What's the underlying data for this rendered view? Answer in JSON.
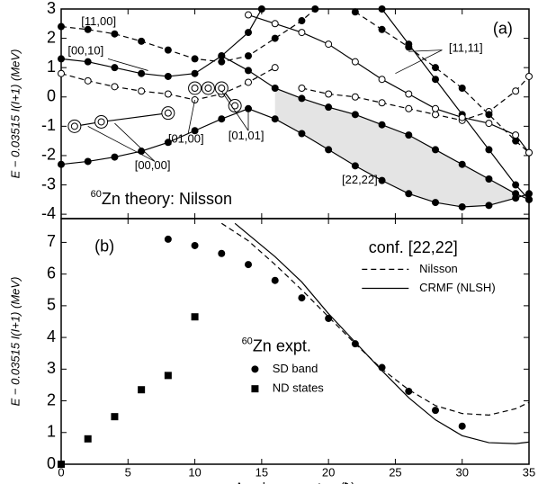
{
  "chart_data": [
    {
      "type": "line",
      "panel_label": "(a)",
      "isotope_mass": "60",
      "caption": "Zn theory: Nilsson",
      "ylabel": "E − 0.03515 I(I+1) (MeV)",
      "xlim": [
        0,
        35
      ],
      "xticks": [
        0,
        5,
        10,
        15,
        20,
        25,
        30,
        35
      ],
      "ylim": [
        -4.15,
        3
      ],
      "yticks": [
        -4,
        -3,
        -2,
        -1,
        0,
        1,
        2,
        3
      ],
      "shaded": true,
      "shade_color": "#e4e4e4",
      "labels": [
        "[11,00]",
        "[00,10]",
        "[00,00]",
        "[01,00]",
        "[01,01]",
        "[11,11]",
        "[22,22]"
      ],
      "series": [
        {
          "marker": "filled",
          "dashed": false,
          "x": [
            0,
            2,
            4,
            6,
            8,
            10,
            12,
            14,
            16,
            18,
            20,
            22,
            24,
            26,
            28,
            30,
            32,
            34,
            35
          ],
          "values": [
            -2.3,
            -2.2,
            -2.05,
            -1.85,
            -1.55,
            -1.15,
            -0.75,
            -0.4,
            -0.75,
            -1.25,
            -1.8,
            -2.35,
            -2.85,
            -3.3,
            -3.6,
            -3.75,
            -3.7,
            -3.45,
            -3.3
          ]
        },
        {
          "marker": "filled",
          "dashed": false,
          "x": [
            12,
            14,
            16,
            18,
            20,
            22,
            24,
            26,
            28,
            30,
            32,
            34,
            35
          ],
          "values": [
            1.4,
            0.9,
            0.3,
            -0.05,
            -0.35,
            -0.6,
            -0.95,
            -1.3,
            -1.8,
            -2.3,
            -2.8,
            -3.3,
            -3.5
          ]
        },
        {
          "marker": "open",
          "dashed": true,
          "x": [
            18,
            20,
            22,
            24,
            26,
            28,
            30,
            32,
            34,
            35
          ],
          "values": [
            0.3,
            0.1,
            0,
            -0.2,
            -0.4,
            -0.6,
            -0.8,
            -0.5,
            0.2,
            0.7
          ]
        },
        {
          "marker": "filled",
          "dashed": true,
          "x": [
            0,
            2,
            4,
            6,
            8,
            10,
            12,
            14,
            16,
            18,
            19
          ],
          "values": [
            2.4,
            2.3,
            2.15,
            1.9,
            1.6,
            1.3,
            1.2,
            1.4,
            2.0,
            2.6,
            3.0
          ]
        },
        {
          "marker": "filled",
          "dashed": false,
          "x": [
            0,
            2,
            4,
            6,
            8,
            10,
            12,
            14,
            15
          ],
          "values": [
            1.3,
            1.2,
            1.0,
            0.8,
            0.7,
            0.8,
            1.4,
            2.2,
            3.0
          ]
        },
        {
          "marker": "double",
          "dashed": false,
          "x": [
            1,
            3,
            8
          ],
          "values": [
            -1.0,
            -0.85,
            -0.55
          ]
        },
        {
          "marker": "open",
          "dashed": true,
          "x": [
            0,
            2,
            4,
            6,
            8,
            10,
            12,
            14,
            16
          ],
          "values": [
            0.8,
            0.55,
            0.35,
            0.2,
            0.1,
            -0.1,
            0.1,
            0.5,
            1.0
          ]
        },
        {
          "marker": "double",
          "dashed": false,
          "x": [
            10,
            11,
            12,
            13
          ],
          "values": [
            0.3,
            0.3,
            0.3,
            -0.3
          ]
        },
        {
          "marker": "filled",
          "dashed": false,
          "x": [
            24,
            26,
            28,
            30,
            32,
            34,
            35
          ],
          "values": [
            3.0,
            1.8,
            0.6,
            -0.6,
            -1.8,
            -3.0,
            -3.5
          ]
        },
        {
          "marker": "filled",
          "dashed": true,
          "x": [
            22,
            24,
            26,
            28,
            30,
            32,
            34,
            35
          ],
          "values": [
            2.9,
            2.3,
            1.7,
            1.0,
            0.3,
            -0.6,
            -1.5,
            -1.9
          ]
        },
        {
          "marker": "open",
          "dashed": false,
          "x": [
            14,
            16,
            18,
            20,
            22,
            24,
            26,
            28,
            30,
            32,
            34,
            35
          ],
          "values": [
            2.8,
            2.5,
            2.2,
            1.8,
            1.2,
            0.6,
            0.1,
            -0.4,
            -0.7,
            -0.9,
            -1.3,
            -1.9
          ]
        }
      ]
    },
    {
      "type": "line",
      "panel_label": "(b)",
      "config_label": "conf. [22,22]",
      "isotope_mass": "60",
      "caption": "Zn expt.",
      "ylabel": "E − 0.03515 I(I+1) (MeV)",
      "xlabel": "Angular  momentum (ħ)",
      "xlim": [
        0,
        35
      ],
      "xticks": [
        0,
        5,
        10,
        15,
        20,
        25,
        30,
        35
      ],
      "ylim": [
        0,
        7.75
      ],
      "yticks": [
        0,
        1,
        2,
        3,
        4,
        5,
        6,
        7
      ],
      "series": [
        {
          "name": "Nilsson",
          "marker": "none",
          "dashed": true,
          "x": [
            12,
            14,
            16,
            18,
            20,
            22,
            24,
            26,
            28,
            30,
            32,
            34,
            35
          ],
          "values": [
            7.6,
            7.05,
            6.3,
            5.5,
            4.65,
            3.8,
            3.0,
            2.35,
            1.85,
            1.6,
            1.55,
            1.75,
            1.95
          ]
        },
        {
          "name": "CRMF (NLSH)",
          "marker": "none",
          "dashed": false,
          "x": [
            13,
            16,
            18,
            20,
            22,
            24,
            26,
            28,
            30,
            32,
            34,
            35
          ],
          "values": [
            7.6,
            6.55,
            5.75,
            4.75,
            3.85,
            2.95,
            2.1,
            1.4,
            0.9,
            0.68,
            0.65,
            0.7
          ]
        },
        {
          "name": "SD band",
          "marker": "filled",
          "line": false,
          "x": [
            8,
            10,
            12,
            14,
            16,
            18,
            20,
            22,
            24,
            26,
            28,
            30
          ],
          "values": [
            7.1,
            6.9,
            6.65,
            6.3,
            5.8,
            5.25,
            4.6,
            3.8,
            3.05,
            2.3,
            1.7,
            1.2
          ]
        },
        {
          "name": "ND states",
          "marker": "square",
          "line": false,
          "x": [
            0,
            2,
            4,
            6,
            8,
            10
          ],
          "values": [
            0,
            0.8,
            1.5,
            2.35,
            2.8,
            4.65
          ]
        }
      ]
    }
  ]
}
